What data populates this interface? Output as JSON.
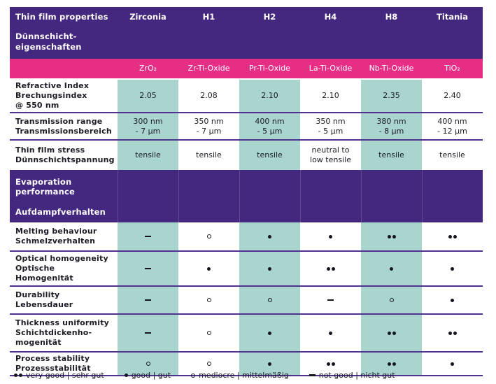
{
  "table": {
    "header": {
      "title_en": "Thin film properties",
      "title_de_lines": [
        "Dünnschicht-",
        "eigenschaften"
      ]
    },
    "columns": [
      "Zirconia",
      "H1",
      "H2",
      "H4",
      "H8",
      "Titania"
    ],
    "materials": [
      "ZrO₂",
      "Zr-Ti-Oxide",
      "Pr-Ti-Oxide",
      "La-Ti-Oxide",
      "Nb-Ti-Oxide",
      "TiO₂"
    ],
    "property_rows": [
      {
        "label_lines": [
          "Refractive Index",
          "Brechungsindex",
          "@ 550 nm"
        ],
        "values": [
          [
            "2.05"
          ],
          [
            "2.08"
          ],
          [
            "2.10"
          ],
          [
            "2.10"
          ],
          [
            "2.35"
          ],
          [
            "2.40"
          ]
        ]
      },
      {
        "label_lines": [
          "Transmission range",
          "Transmissionsbereich"
        ],
        "values": [
          [
            "300 nm",
            "- 7 µm"
          ],
          [
            "350 nm",
            "- 7 µm"
          ],
          [
            "400 nm",
            "- 5 µm"
          ],
          [
            "350 nm",
            "- 5 µm"
          ],
          [
            "380 nm",
            "- 8 µm"
          ],
          [
            "400 nm",
            "- 12 µm"
          ]
        ]
      },
      {
        "label_lines": [
          "Thin film stress",
          "Dünnschichtspannung"
        ],
        "values": [
          [
            "tensile"
          ],
          [
            "tensile"
          ],
          [
            "tensile"
          ],
          [
            "neutral to",
            "low tensile"
          ],
          [
            "tensile"
          ],
          [
            "tensile"
          ]
        ]
      }
    ],
    "section_header": {
      "lines_en": [
        "Evaporation",
        "performance"
      ],
      "line_de": "Aufdampfverhalten"
    },
    "rating_rows": [
      {
        "label_lines": [
          "Melting behaviour",
          "Schmelzverhalten"
        ],
        "ratings": [
          "not-good",
          "mediocre",
          "good",
          "good",
          "very-good",
          "very-good"
        ]
      },
      {
        "label_lines": [
          "Optical homogeneity",
          "Optische",
          "Homogenität"
        ],
        "ratings": [
          "not-good",
          "good",
          "good",
          "very-good",
          "good",
          "good"
        ]
      },
      {
        "label_lines": [
          "Durability",
          "Lebensdauer"
        ],
        "ratings": [
          "not-good",
          "mediocre",
          "mediocre",
          "not-good",
          "mediocre",
          "good"
        ]
      },
      {
        "label_lines": [
          "Thickness uniformity",
          "Schichtdickenho-",
          "mogenität"
        ],
        "ratings": [
          "not-good",
          "mediocre",
          "good",
          "good",
          "very-good",
          "very-good"
        ]
      },
      {
        "label_lines": [
          "Process stability",
          "Prozessstabilität"
        ],
        "ratings": [
          "mediocre",
          "mediocre",
          "good",
          "very-good",
          "very-good",
          "good"
        ]
      }
    ],
    "legend": [
      {
        "rating": "very-good",
        "label": "very good | sehr gut"
      },
      {
        "rating": "good",
        "label": "good | gut"
      },
      {
        "rating": "mediocre",
        "label": "mediocre | mittelmäßig"
      },
      {
        "rating": "not-good",
        "label": "not good | nicht gut"
      }
    ],
    "colors": {
      "header_purple": "#44277e",
      "pink": "#e62e87",
      "teal": "#a9d5ce",
      "divider_purple": "#4f3190",
      "text": "#1b1b25"
    }
  }
}
